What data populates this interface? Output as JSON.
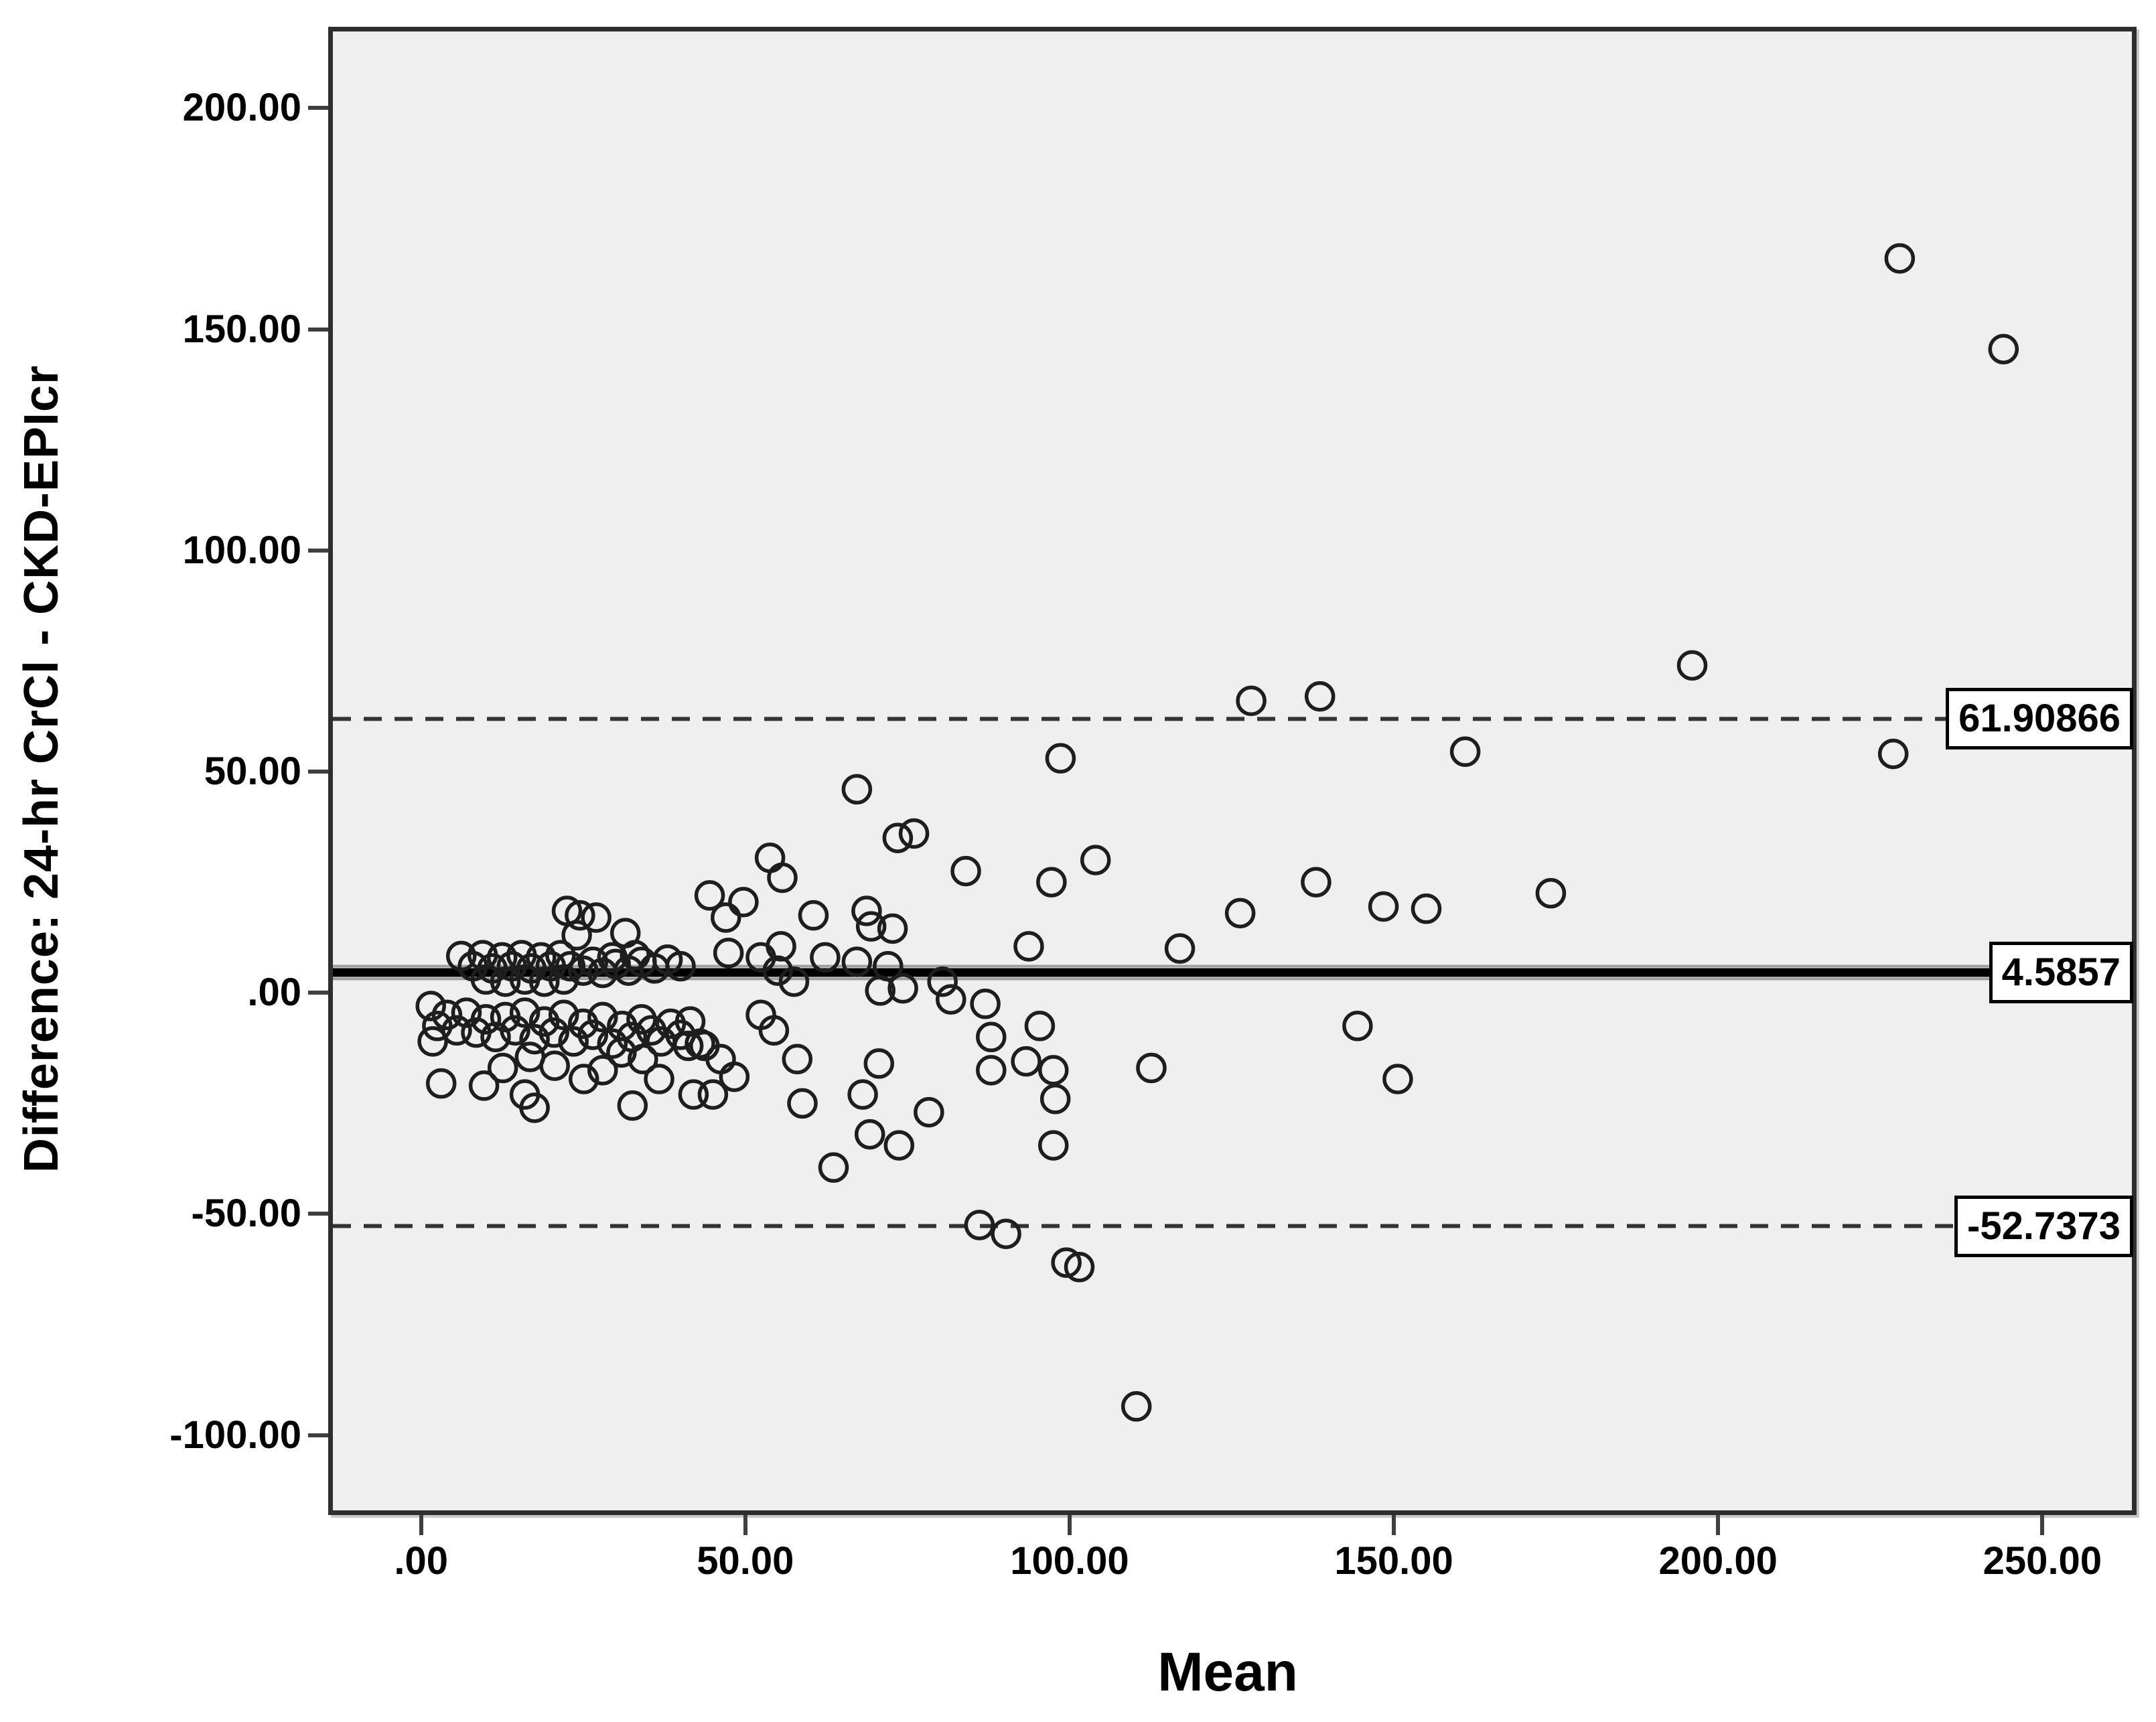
{
  "colors": {
    "plot_background": "#efefef",
    "frame_border": "#2e2e2e",
    "point_stroke": "#1e1e1e",
    "mean_line": "#000000",
    "mean_line_halo": "#9e9e9e",
    "loa_line": "#333333",
    "annotation_background": "#ffffff",
    "annotation_border": "#000000"
  },
  "chart_data": {
    "type": "scatter",
    "title": "",
    "xlabel": "Mean",
    "ylabel": "Difference: 24-hr CrCl - CKD-EPIcr",
    "xlim": [
      -13.6,
      263.8
    ],
    "ylim": [
      -117.0,
      217.3
    ],
    "grid": false,
    "x_ticks": [
      {
        "v": 0,
        "label": ".00"
      },
      {
        "v": 50,
        "label": "50.00"
      },
      {
        "v": 100,
        "label": "100.00"
      },
      {
        "v": 150,
        "label": "150.00"
      },
      {
        "v": 200,
        "label": "200.00"
      },
      {
        "v": 250,
        "label": "250.00"
      }
    ],
    "y_ticks": [
      {
        "v": 200,
        "label": "200.00"
      },
      {
        "v": 150,
        "label": "150.00"
      },
      {
        "v": 100,
        "label": "100.00"
      },
      {
        "v": 50,
        "label": "50.00"
      },
      {
        "v": 0,
        "label": ".00"
      },
      {
        "v": -50,
        "label": "-50.00"
      },
      {
        "v": -100,
        "label": "-100.00"
      }
    ],
    "lines": [
      {
        "name": "upper-limit-of-agreement",
        "value": 61.90866,
        "style": "dashed",
        "label": "61.90866"
      },
      {
        "name": "mean-difference",
        "value": 4.5857,
        "style": "solid",
        "label": "4.5857"
      },
      {
        "name": "lower-limit-of-agreement",
        "value": -52.7373,
        "style": "dashed",
        "label": "-52.7373"
      }
    ],
    "points": [
      [
        6.2,
        8.3
      ],
      [
        8,
        6
      ],
      [
        9.5,
        8.5
      ],
      [
        11,
        5.5
      ],
      [
        12.5,
        8
      ],
      [
        14,
        6
      ],
      [
        15.5,
        8.5
      ],
      [
        17,
        5.5
      ],
      [
        18.5,
        8
      ],
      [
        20,
        6
      ],
      [
        21.5,
        8.5
      ],
      [
        23,
        6
      ],
      [
        10,
        3
      ],
      [
        13,
        2.5
      ],
      [
        16,
        3
      ],
      [
        19,
        2.5
      ],
      [
        22,
        3
      ],
      [
        25,
        5
      ],
      [
        26.5,
        7
      ],
      [
        28,
        4.5
      ],
      [
        30,
        6.5
      ],
      [
        32,
        5
      ],
      [
        34,
        7
      ],
      [
        36,
        5.5
      ],
      [
        38,
        7.5
      ],
      [
        40,
        6
      ],
      [
        22.5,
        18.5
      ],
      [
        24.5,
        17.5
      ],
      [
        27,
        17
      ],
      [
        24,
        13
      ],
      [
        31.5,
        13.5
      ],
      [
        29.5,
        8
      ],
      [
        33,
        8.5
      ],
      [
        1.5,
        -3
      ],
      [
        2.5,
        -7.5
      ],
      [
        4,
        -5
      ],
      [
        5.5,
        -8.5
      ],
      [
        7,
        -4.5
      ],
      [
        8.5,
        -9
      ],
      [
        10,
        -6
      ],
      [
        11.5,
        -10
      ],
      [
        13,
        -5.5
      ],
      [
        14.5,
        -8.5
      ],
      [
        16,
        -4.5
      ],
      [
        17.5,
        -10.5
      ],
      [
        19,
        -6.5
      ],
      [
        20.5,
        -9
      ],
      [
        22,
        -5
      ],
      [
        23.5,
        -11
      ],
      [
        25,
        -7
      ],
      [
        26.5,
        -9.5
      ],
      [
        28,
        -5.5
      ],
      [
        29.5,
        -11.5
      ],
      [
        31,
        -7.5
      ],
      [
        32.5,
        -10
      ],
      [
        34,
        -6
      ],
      [
        35.5,
        -8.5
      ],
      [
        37,
        -11
      ],
      [
        38.5,
        -7
      ],
      [
        40,
        -9.5
      ],
      [
        41.5,
        -6.5
      ],
      [
        43,
        -11.5
      ],
      [
        1.8,
        -11
      ],
      [
        3.1,
        -20.5
      ],
      [
        9.7,
        -21
      ],
      [
        12.6,
        -17
      ],
      [
        16,
        -23
      ],
      [
        16.8,
        -14.5
      ],
      [
        20.6,
        -16.5
      ],
      [
        25.1,
        -19.5
      ],
      [
        28,
        -17.5
      ],
      [
        30.9,
        -13.5
      ],
      [
        34.2,
        -15
      ],
      [
        36.7,
        -19.5
      ],
      [
        41.2,
        -12
      ],
      [
        42,
        -23
      ],
      [
        45,
        -23
      ],
      [
        43.7,
        -12
      ],
      [
        46.2,
        -15
      ],
      [
        48.3,
        -19
      ],
      [
        32.6,
        -25.5
      ],
      [
        17.5,
        -26
      ],
      [
        58,
        -15
      ],
      [
        58.8,
        -25
      ],
      [
        52.4,
        -5
      ],
      [
        54.4,
        -8.5
      ],
      [
        44.5,
        22
      ],
      [
        47,
        17
      ],
      [
        49.7,
        20.5
      ],
      [
        53.8,
        30.5
      ],
      [
        55.7,
        26
      ],
      [
        47.4,
        9
      ],
      [
        52.4,
        8
      ],
      [
        55.5,
        10.5
      ],
      [
        55,
        5
      ],
      [
        57.5,
        2.5
      ],
      [
        60.5,
        17.5
      ],
      [
        68.7,
        18.5
      ],
      [
        69.4,
        15
      ],
      [
        72.7,
        14.5
      ],
      [
        62.3,
        8
      ],
      [
        67.2,
        7
      ],
      [
        72,
        6
      ],
      [
        70.8,
        0.5
      ],
      [
        74.3,
        1
      ],
      [
        80.4,
        2.5
      ],
      [
        81.7,
        -1.5
      ],
      [
        87,
        -2.5
      ],
      [
        93.7,
        10.5
      ],
      [
        95.4,
        -7.5
      ],
      [
        87.9,
        -10
      ],
      [
        87.9,
        -17.5
      ],
      [
        67.2,
        46
      ],
      [
        73.5,
        35
      ],
      [
        76,
        36
      ],
      [
        84,
        27.5
      ],
      [
        97.2,
        25
      ],
      [
        104,
        30
      ],
      [
        98.6,
        53
      ],
      [
        117,
        10
      ],
      [
        112.6,
        -17
      ],
      [
        126.3,
        18
      ],
      [
        128,
        66
      ],
      [
        138.6,
        67
      ],
      [
        161,
        54.5
      ],
      [
        138,
        25
      ],
      [
        148.4,
        19.5
      ],
      [
        155,
        19
      ],
      [
        174.2,
        22.5
      ],
      [
        144.4,
        -7.5
      ],
      [
        150.6,
        -19.5
      ],
      [
        196,
        74
      ],
      [
        227,
        54
      ],
      [
        228,
        166
      ],
      [
        244,
        145.5
      ],
      [
        70.6,
        -16
      ],
      [
        78.3,
        -27
      ],
      [
        73.7,
        -34.5
      ],
      [
        93.3,
        -15.5
      ],
      [
        97.5,
        -17.5
      ],
      [
        97.8,
        -24
      ],
      [
        97.5,
        -34.5
      ],
      [
        63.6,
        -39.5
      ],
      [
        68.1,
        -23
      ],
      [
        69.2,
        -32
      ],
      [
        86.1,
        -52.5
      ],
      [
        90.2,
        -54.5
      ],
      [
        99.5,
        -61
      ],
      [
        101.5,
        -62
      ],
      [
        110.3,
        -93.5
      ]
    ],
    "legend": null,
    "marker": {
      "shape": "open-circle",
      "radius_px": 20,
      "stroke_px": 5.5
    }
  }
}
